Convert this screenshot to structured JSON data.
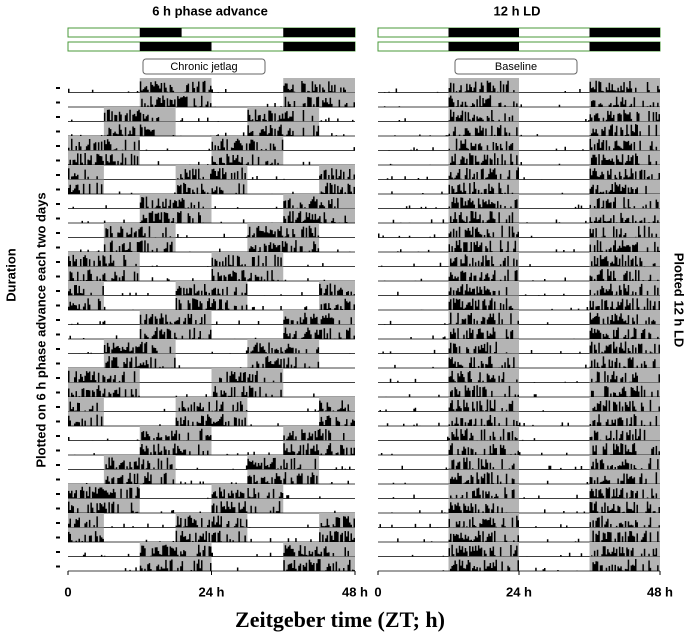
{
  "chart_data": {
    "type": "actogram",
    "xlabel": "Zeitgeber time (ZT; h)",
    "ylabel_outer": "Duration",
    "panels": [
      {
        "title": "6 h phase advance",
        "condition": "Chronic jetlag",
        "side_label": "Plotted on 6 h phase advance each two days",
        "xlim": [
          0,
          48
        ],
        "xticks": [
          0,
          {
            "value": 24,
            "label": "24 h"
          },
          {
            "value": 48,
            "label": "48 h"
          }
        ]
      },
      {
        "title": "12 h LD",
        "condition": "Baseline",
        "side_label": "Plotted 12 h LD",
        "xlim": [
          0,
          48
        ],
        "xticks": [
          0,
          {
            "value": 24,
            "label": "24 h"
          },
          {
            "value": 48,
            "label": "48 h"
          }
        ]
      }
    ]
  }
}
